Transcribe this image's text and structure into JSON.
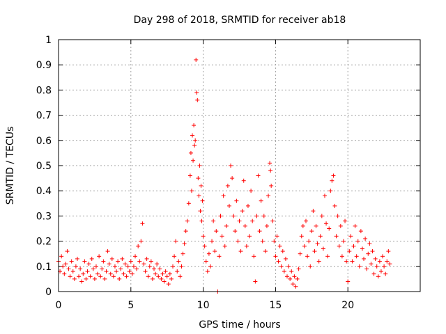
{
  "chart_data": {
    "type": "scatter",
    "title": "Day 298 of 2018, SRMTID for receiver ab18",
    "xlabel": "GPS time / hours",
    "ylabel": "SRMTID / TECUs",
    "xlim": [
      0,
      25
    ],
    "ylim": [
      0,
      1
    ],
    "grid": true,
    "xticks": [
      0,
      5,
      10,
      15,
      20
    ],
    "yticks": [
      0,
      0.1,
      0.2,
      0.3,
      0.4,
      0.5,
      0.6,
      0.7,
      0.8,
      0.9,
      1
    ],
    "xtick_labels": [
      "0",
      "5",
      "10",
      "15",
      "20"
    ],
    "ytick_labels": [
      "0",
      "0.1",
      "0.2",
      "0.3",
      "0.4",
      "0.5",
      "0.6",
      "0.7",
      "0.8",
      "0.9",
      "1"
    ],
    "marker_color": "#ff0000",
    "marker": "+",
    "series": [
      {
        "name": "SRMTID",
        "points": [
          [
            0.0,
            0.12
          ],
          [
            0.1,
            0.08
          ],
          [
            0.2,
            0.14
          ],
          [
            0.3,
            0.1
          ],
          [
            0.4,
            0.07
          ],
          [
            0.5,
            0.11
          ],
          [
            0.6,
            0.16
          ],
          [
            0.7,
            0.09
          ],
          [
            0.8,
            0.06
          ],
          [
            0.9,
            0.12
          ],
          [
            1.0,
            0.08
          ],
          [
            1.1,
            0.05
          ],
          [
            1.2,
            0.1
          ],
          [
            1.3,
            0.13
          ],
          [
            1.4,
            0.06
          ],
          [
            1.5,
            0.09
          ],
          [
            1.6,
            0.04
          ],
          [
            1.7,
            0.07
          ],
          [
            1.8,
            0.12
          ],
          [
            1.9,
            0.05
          ],
          [
            2.0,
            0.08
          ],
          [
            2.1,
            0.11
          ],
          [
            2.2,
            0.06
          ],
          [
            2.3,
            0.13
          ],
          [
            2.4,
            0.09
          ],
          [
            2.5,
            0.05
          ],
          [
            2.6,
            0.1
          ],
          [
            2.7,
            0.07
          ],
          [
            2.8,
            0.14
          ],
          [
            2.9,
            0.06
          ],
          [
            3.0,
            0.09
          ],
          [
            3.1,
            0.12
          ],
          [
            3.2,
            0.05
          ],
          [
            3.3,
            0.08
          ],
          [
            3.4,
            0.16
          ],
          [
            3.5,
            0.11
          ],
          [
            3.6,
            0.07
          ],
          [
            3.7,
            0.13
          ],
          [
            3.8,
            0.06
          ],
          [
            3.9,
            0.1
          ],
          [
            4.0,
            0.08
          ],
          [
            4.1,
            0.12
          ],
          [
            4.2,
            0.05
          ],
          [
            4.3,
            0.09
          ],
          [
            4.4,
            0.13
          ],
          [
            4.5,
            0.07
          ],
          [
            4.6,
            0.11
          ],
          [
            4.7,
            0.06
          ],
          [
            4.8,
            0.1
          ],
          [
            4.9,
            0.08
          ],
          [
            5.0,
            0.12
          ],
          [
            5.1,
            0.07
          ],
          [
            5.2,
            0.1
          ],
          [
            5.3,
            0.14
          ],
          [
            5.4,
            0.09
          ],
          [
            5.5,
            0.18
          ],
          [
            5.6,
            0.12
          ],
          [
            5.7,
            0.2
          ],
          [
            5.8,
            0.27
          ],
          [
            5.9,
            0.11
          ],
          [
            6.0,
            0.08
          ],
          [
            6.1,
            0.13
          ],
          [
            6.2,
            0.06
          ],
          [
            6.3,
            0.1
          ],
          [
            6.4,
            0.12
          ],
          [
            6.5,
            0.05
          ],
          [
            6.6,
            0.09
          ],
          [
            6.7,
            0.07
          ],
          [
            6.8,
            0.11
          ],
          [
            6.9,
            0.06
          ],
          [
            7.0,
            0.09
          ],
          [
            7.1,
            0.05
          ],
          [
            7.2,
            0.07
          ],
          [
            7.3,
            0.04
          ],
          [
            7.4,
            0.08
          ],
          [
            7.5,
            0.06
          ],
          [
            7.6,
            0.03
          ],
          [
            7.7,
            0.07
          ],
          [
            7.8,
            0.05
          ],
          [
            7.9,
            0.1
          ],
          [
            8.0,
            0.14
          ],
          [
            8.1,
            0.2
          ],
          [
            8.2,
            0.08
          ],
          [
            8.3,
            0.12
          ],
          [
            8.4,
            0.06
          ],
          [
            8.5,
            0.1
          ],
          [
            8.6,
            0.15
          ],
          [
            8.7,
            0.19
          ],
          [
            8.8,
            0.24
          ],
          [
            8.9,
            0.28
          ],
          [
            9.0,
            0.35
          ],
          [
            9.1,
            0.46
          ],
          [
            9.15,
            0.55
          ],
          [
            9.2,
            0.4
          ],
          [
            9.25,
            0.62
          ],
          [
            9.3,
            0.52
          ],
          [
            9.35,
            0.66
          ],
          [
            9.4,
            0.58
          ],
          [
            9.45,
            0.6
          ],
          [
            9.5,
            0.92
          ],
          [
            9.55,
            0.79
          ],
          [
            9.6,
            0.76
          ],
          [
            9.65,
            0.45
          ],
          [
            9.7,
            0.38
          ],
          [
            9.75,
            0.5
          ],
          [
            9.8,
            0.32
          ],
          [
            9.85,
            0.42
          ],
          [
            9.9,
            0.28
          ],
          [
            9.95,
            0.36
          ],
          [
            10.0,
            0.22
          ],
          [
            10.1,
            0.18
          ],
          [
            10.2,
            0.12
          ],
          [
            10.3,
            0.08
          ],
          [
            10.4,
            0.15
          ],
          [
            10.5,
            0.1
          ],
          [
            10.6,
            0.2
          ],
          [
            10.7,
            0.28
          ],
          [
            10.8,
            0.16
          ],
          [
            10.9,
            0.24
          ],
          [
            11.0,
            0.0
          ],
          [
            11.1,
            0.14
          ],
          [
            11.2,
            0.3
          ],
          [
            11.3,
            0.22
          ],
          [
            11.4,
            0.38
          ],
          [
            11.5,
            0.18
          ],
          [
            11.6,
            0.26
          ],
          [
            11.7,
            0.42
          ],
          [
            11.8,
            0.34
          ],
          [
            11.9,
            0.5
          ],
          [
            12.0,
            0.45
          ],
          [
            12.1,
            0.3
          ],
          [
            12.2,
            0.24
          ],
          [
            12.3,
            0.36
          ],
          [
            12.4,
            0.2
          ],
          [
            12.5,
            0.28
          ],
          [
            12.6,
            0.16
          ],
          [
            12.7,
            0.32
          ],
          [
            12.8,
            0.44
          ],
          [
            12.9,
            0.26
          ],
          [
            13.0,
            0.18
          ],
          [
            13.1,
            0.34
          ],
          [
            13.2,
            0.22
          ],
          [
            13.3,
            0.4
          ],
          [
            13.4,
            0.28
          ],
          [
            13.5,
            0.14
          ],
          [
            13.6,
            0.04
          ],
          [
            13.7,
            0.3
          ],
          [
            13.8,
            0.46
          ],
          [
            13.9,
            0.24
          ],
          [
            14.0,
            0.36
          ],
          [
            14.1,
            0.2
          ],
          [
            14.2,
            0.3
          ],
          [
            14.3,
            0.16
          ],
          [
            14.4,
            0.26
          ],
          [
            14.5,
            0.38
          ],
          [
            14.6,
            0.51
          ],
          [
            14.65,
            0.48
          ],
          [
            14.7,
            0.42
          ],
          [
            14.8,
            0.28
          ],
          [
            14.9,
            0.2
          ],
          [
            15.0,
            0.14
          ],
          [
            15.1,
            0.22
          ],
          [
            15.2,
            0.12
          ],
          [
            15.3,
            0.18
          ],
          [
            15.4,
            0.1
          ],
          [
            15.5,
            0.16
          ],
          [
            15.6,
            0.08
          ],
          [
            15.7,
            0.13
          ],
          [
            15.8,
            0.06
          ],
          [
            15.9,
            0.1
          ],
          [
            16.0,
            0.05
          ],
          [
            16.1,
            0.08
          ],
          [
            16.2,
            0.03
          ],
          [
            16.3,
            0.06
          ],
          [
            16.4,
            0.02
          ],
          [
            16.5,
            0.05
          ],
          [
            16.6,
            0.09
          ],
          [
            16.7,
            0.15
          ],
          [
            16.8,
            0.22
          ],
          [
            16.9,
            0.26
          ],
          [
            17.0,
            0.18
          ],
          [
            17.1,
            0.28
          ],
          [
            17.2,
            0.14
          ],
          [
            17.3,
            0.2
          ],
          [
            17.4,
            0.1
          ],
          [
            17.5,
            0.24
          ],
          [
            17.6,
            0.32
          ],
          [
            17.7,
            0.16
          ],
          [
            17.8,
            0.26
          ],
          [
            17.9,
            0.19
          ],
          [
            18.0,
            0.12
          ],
          [
            18.1,
            0.22
          ],
          [
            18.2,
            0.3
          ],
          [
            18.3,
            0.17
          ],
          [
            18.4,
            0.38
          ],
          [
            18.5,
            0.27
          ],
          [
            18.6,
            0.14
          ],
          [
            18.7,
            0.25
          ],
          [
            18.8,
            0.4
          ],
          [
            18.9,
            0.44
          ],
          [
            19.0,
            0.46
          ],
          [
            19.1,
            0.34
          ],
          [
            19.2,
            0.22
          ],
          [
            19.3,
            0.3
          ],
          [
            19.4,
            0.18
          ],
          [
            19.5,
            0.26
          ],
          [
            19.6,
            0.14
          ],
          [
            19.7,
            0.2
          ],
          [
            19.8,
            0.28
          ],
          [
            19.9,
            0.12
          ],
          [
            20.0,
            0.04
          ],
          [
            20.1,
            0.16
          ],
          [
            20.2,
            0.22
          ],
          [
            20.3,
            0.12
          ],
          [
            20.4,
            0.18
          ],
          [
            20.5,
            0.26
          ],
          [
            20.6,
            0.14
          ],
          [
            20.7,
            0.2
          ],
          [
            20.8,
            0.1
          ],
          [
            20.9,
            0.24
          ],
          [
            21.0,
            0.17
          ],
          [
            21.1,
            0.13
          ],
          [
            21.2,
            0.21
          ],
          [
            21.3,
            0.09
          ],
          [
            21.4,
            0.15
          ],
          [
            21.5,
            0.19
          ],
          [
            21.6,
            0.11
          ],
          [
            21.7,
            0.16
          ],
          [
            21.8,
            0.07
          ],
          [
            21.9,
            0.13
          ],
          [
            22.0,
            0.1
          ],
          [
            22.1,
            0.06
          ],
          [
            22.2,
            0.12
          ],
          [
            22.3,
            0.08
          ],
          [
            22.4,
            0.14
          ],
          [
            22.5,
            0.1
          ],
          [
            22.6,
            0.07
          ],
          [
            22.7,
            0.12
          ],
          [
            22.8,
            0.16
          ],
          [
            22.9,
            0.11
          ]
        ]
      }
    ]
  }
}
